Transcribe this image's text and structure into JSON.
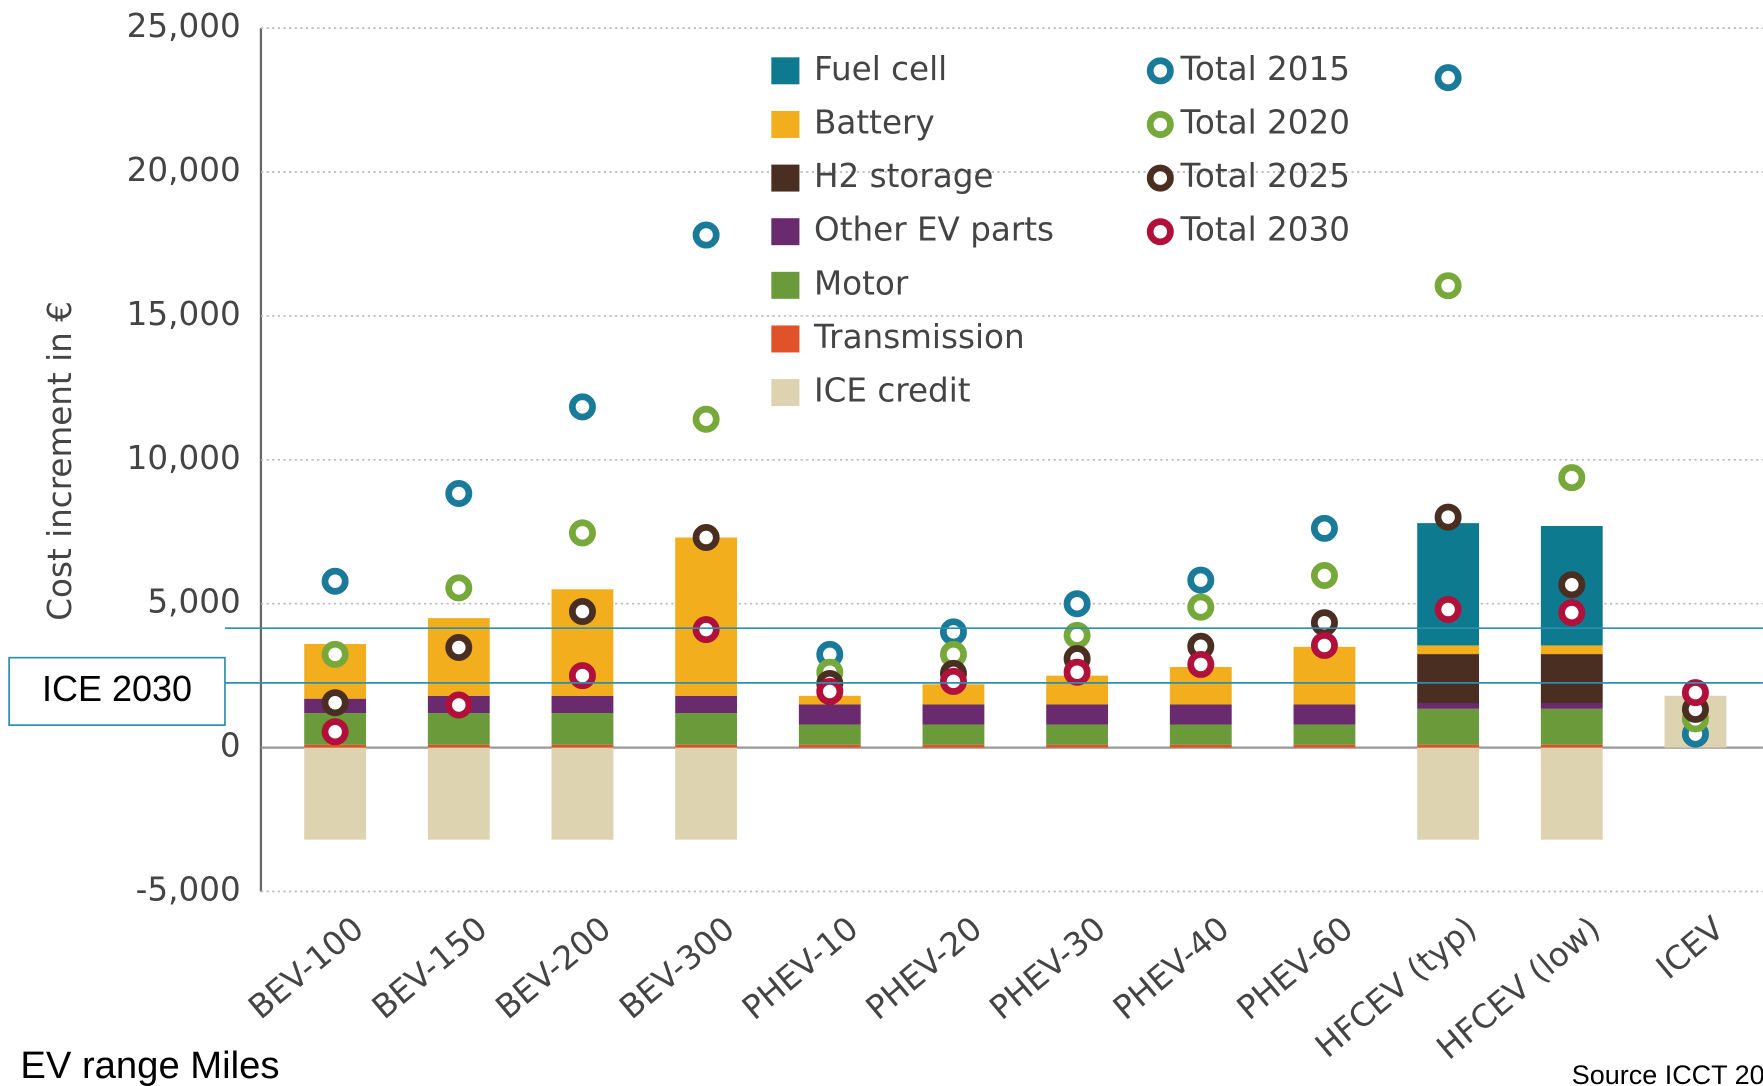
{
  "chart_data": {
    "type": "bar",
    "y_label": "Cost increment in €",
    "x_label": "EV range Miles",
    "source": "Source ICCT 20",
    "annotation": "ICE 2030",
    "annotation_lines": [
      4150,
      2250
    ],
    "categories": [
      "BEV-100",
      "BEV-150",
      "BEV-200",
      "BEV-300",
      "PHEV-10",
      "PHEV-20",
      "PHEV-30",
      "PHEV-40",
      "PHEV-60",
      "HFCEV (typ)",
      "HFCEV (low)",
      "ICEV"
    ],
    "ylim": [
      -5000,
      25000
    ],
    "yticks": [
      {
        "value": -5000,
        "label": "-5,000"
      },
      0,
      {
        "value": 5000,
        "label": "5,000"
      },
      {
        "value": 10000,
        "label": "10,000"
      },
      {
        "value": 15000,
        "label": "15,000"
      },
      {
        "value": 20000,
        "label": "20,000"
      },
      {
        "value": 25000,
        "label": "25,000"
      }
    ],
    "grid": true,
    "series": [
      {
        "name": "Fuel cell",
        "color": "#0e7a90",
        "values": [
          0,
          0,
          0,
          0,
          0,
          0,
          0,
          0,
          0,
          4250,
          4150,
          0
        ]
      },
      {
        "name": "Battery",
        "color": "#f2ae1c",
        "values": [
          1900,
          2700,
          3700,
          5500,
          300,
          700,
          1000,
          1300,
          2000,
          300,
          300,
          0
        ]
      },
      {
        "name": "H2 storage",
        "color": "#4a2e22",
        "values": [
          0,
          0,
          0,
          0,
          0,
          0,
          0,
          0,
          0,
          1700,
          1700,
          0
        ]
      },
      {
        "name": "Other EV parts",
        "color": "#6a2a6e",
        "values": [
          500,
          600,
          600,
          600,
          700,
          700,
          700,
          700,
          700,
          200,
          200,
          0
        ]
      },
      {
        "name": "Motor",
        "color": "#6a9a3a",
        "values": [
          1100,
          1100,
          1100,
          1100,
          700,
          700,
          700,
          700,
          700,
          1250,
          1250,
          0
        ]
      },
      {
        "name": "Transmission",
        "color": "#e0522a",
        "values": [
          100,
          100,
          100,
          100,
          100,
          100,
          100,
          100,
          100,
          100,
          100,
          0
        ]
      },
      {
        "name": "ICE credit",
        "color": "#ddd3b0",
        "values": [
          -3200,
          -3200,
          -3200,
          -3200,
          0,
          0,
          0,
          0,
          0,
          -3200,
          -3200,
          1800
        ]
      }
    ],
    "point_series": [
      {
        "name": "Total 2015",
        "color": "#1a7a9a",
        "values": [
          5780,
          8830,
          11840,
          17810,
          3240,
          4020,
          5000,
          5820,
          7620,
          23280,
          null,
          470
        ]
      },
      {
        "name": "Total 2020",
        "color": "#76a83a",
        "values": [
          3240,
          5550,
          7460,
          11410,
          2620,
          3240,
          3900,
          4880,
          5980,
          16050,
          9380,
          1000
        ]
      },
      {
        "name": "Total 2025",
        "color": "#4a2e22",
        "values": [
          1560,
          3480,
          4730,
          7300,
          2230,
          2580,
          3090,
          3520,
          4340,
          8010,
          5660,
          1330
        ]
      },
      {
        "name": "Total 2030",
        "color": "#b0103a",
        "values": [
          550,
          1480,
          2500,
          4100,
          1950,
          2300,
          2620,
          2890,
          3550,
          4800,
          4690,
          1910
        ]
      }
    ]
  }
}
